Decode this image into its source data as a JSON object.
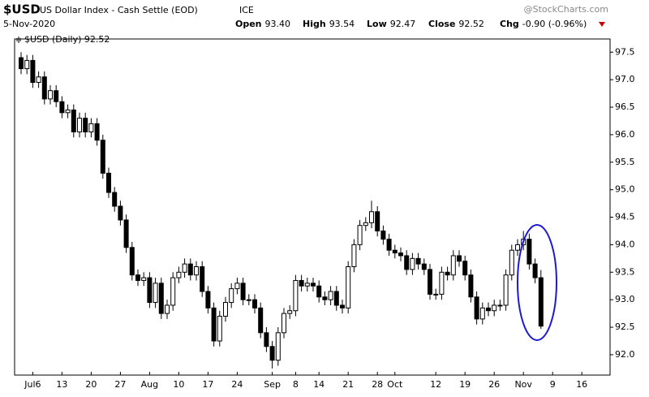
{
  "header": {
    "symbol": "$USD",
    "name": "US Dollar Index - Cash Settle (EOD)",
    "exchange": "ICE",
    "watermark": "@StockCharts.com",
    "date": "5-Nov-2020",
    "quote": [
      {
        "label": "Open",
        "value": "93.40"
      },
      {
        "label": "High",
        "value": "93.54"
      },
      {
        "label": "Low",
        "value": "92.47"
      },
      {
        "label": "Close",
        "value": "92.52"
      },
      {
        "label": "Chg",
        "value": "-0.90 (-0.96%)"
      }
    ]
  },
  "chart_data": {
    "type": "candlestick",
    "legend": "$USD (Daily) 92.52",
    "up_color": "#ffffff",
    "down_color": "#000000",
    "categories": [
      null,
      null,
      "Jul6",
      null,
      null,
      null,
      null,
      "13",
      null,
      null,
      null,
      null,
      "20",
      null,
      null,
      null,
      null,
      "27",
      null,
      null,
      null,
      null,
      "Aug",
      null,
      null,
      null,
      null,
      "10",
      null,
      null,
      null,
      null,
      "17",
      null,
      null,
      null,
      null,
      "24",
      null,
      null,
      null,
      null,
      null,
      "Sep",
      null,
      null,
      null,
      "8",
      null,
      null,
      null,
      "14",
      null,
      null,
      null,
      null,
      "21",
      null,
      null,
      null,
      null,
      "28",
      null,
      null,
      "Oct",
      null,
      null,
      null,
      null,
      null,
      null,
      "12",
      null,
      null,
      null,
      null,
      "19",
      null,
      null,
      null,
      null,
      "26",
      null,
      null,
      null,
      null,
      "Nov",
      null,
      null,
      null,
      null,
      "9",
      null,
      null,
      null,
      null,
      "16",
      null,
      null,
      null,
      null
    ],
    "open": [
      97.4,
      97.2,
      97.35,
      96.95,
      97.05,
      96.65,
      96.8,
      96.6,
      96.4,
      96.45,
      96.05,
      96.3,
      96.05,
      96.2,
      95.9,
      95.3,
      94.95,
      94.7,
      94.45,
      93.95,
      93.45,
      93.35,
      93.4,
      92.95,
      93.3,
      92.75,
      92.9,
      93.4,
      93.5,
      93.65,
      93.45,
      93.6,
      93.15,
      92.85,
      92.25,
      92.7,
      92.95,
      93.2,
      93.3,
      93.0,
      93.0,
      92.85,
      92.4,
      92.15,
      91.9,
      92.4,
      92.75,
      92.8,
      93.35,
      93.25,
      93.3,
      93.25,
      93.05,
      93.0,
      93.15,
      92.9,
      92.85,
      93.6,
      94.0,
      94.35,
      94.4,
      94.6,
      94.25,
      94.1,
      93.9,
      93.85,
      93.8,
      93.55,
      93.75,
      93.65,
      93.55,
      93.1,
      93.1,
      93.5,
      93.45,
      93.8,
      93.7,
      93.45,
      93.05,
      92.65,
      92.85,
      92.8,
      92.9,
      92.9,
      93.45,
      93.9,
      94.0,
      94.1,
      93.65,
      93.4,
      null,
      null,
      null,
      null,
      null,
      null,
      null,
      null,
      null,
      null,
      null
    ],
    "high": [
      97.5,
      97.45,
      97.45,
      97.15,
      97.15,
      96.9,
      96.9,
      96.7,
      96.55,
      96.55,
      96.4,
      96.4,
      96.3,
      96.3,
      96.0,
      95.4,
      95.05,
      94.8,
      94.55,
      94.05,
      93.55,
      93.5,
      93.5,
      93.4,
      93.4,
      93.0,
      93.5,
      93.6,
      93.75,
      93.75,
      93.7,
      93.7,
      93.25,
      92.95,
      92.8,
      93.05,
      93.3,
      93.4,
      93.4,
      93.1,
      93.1,
      92.95,
      92.5,
      92.25,
      92.5,
      92.85,
      92.9,
      93.45,
      93.45,
      93.4,
      93.4,
      93.35,
      93.15,
      93.25,
      93.25,
      93.0,
      93.7,
      94.1,
      94.45,
      94.5,
      94.8,
      94.7,
      94.35,
      94.2,
      94.0,
      93.95,
      93.9,
      93.85,
      93.85,
      93.75,
      93.65,
      93.2,
      93.6,
      93.6,
      93.9,
      93.9,
      93.8,
      93.55,
      93.15,
      92.95,
      92.95,
      93.0,
      93.0,
      93.55,
      94.0,
      94.1,
      94.25,
      94.2,
      93.75,
      93.54,
      null,
      null,
      null,
      null,
      null,
      null,
      null,
      null,
      null,
      null,
      null
    ],
    "low": [
      97.1,
      97.1,
      96.85,
      96.85,
      96.55,
      96.55,
      96.5,
      96.3,
      96.3,
      95.95,
      95.95,
      95.95,
      95.95,
      95.8,
      95.2,
      94.85,
      94.6,
      94.35,
      93.85,
      93.35,
      93.25,
      93.25,
      92.85,
      92.85,
      92.65,
      92.65,
      92.8,
      93.3,
      93.4,
      93.35,
      93.35,
      93.05,
      92.75,
      92.15,
      92.15,
      92.6,
      92.85,
      93.1,
      92.9,
      92.9,
      92.75,
      92.3,
      92.05,
      91.75,
      91.8,
      92.3,
      92.65,
      92.7,
      93.15,
      93.15,
      93.15,
      92.95,
      92.9,
      92.9,
      92.8,
      92.75,
      92.75,
      93.5,
      93.9,
      94.25,
      94.3,
      94.15,
      94.0,
      93.8,
      93.75,
      93.7,
      93.45,
      93.45,
      93.55,
      93.45,
      93.0,
      93.0,
      93.0,
      93.35,
      93.35,
      93.6,
      93.35,
      92.95,
      92.55,
      92.55,
      92.7,
      92.7,
      92.8,
      92.8,
      93.35,
      93.8,
      93.9,
      93.55,
      93.3,
      92.47,
      null,
      null,
      null,
      null,
      null,
      null,
      null,
      null,
      null,
      null,
      null
    ],
    "close": [
      97.2,
      97.35,
      96.95,
      97.05,
      96.65,
      96.8,
      96.6,
      96.4,
      96.45,
      96.05,
      96.3,
      96.05,
      96.2,
      95.9,
      95.3,
      94.95,
      94.7,
      94.45,
      93.95,
      93.45,
      93.35,
      93.4,
      92.95,
      93.3,
      92.75,
      92.9,
      93.4,
      93.5,
      93.65,
      93.45,
      93.6,
      93.15,
      92.85,
      92.25,
      92.7,
      92.95,
      93.2,
      93.3,
      93.0,
      93.0,
      92.85,
      92.4,
      92.15,
      91.9,
      92.4,
      92.75,
      92.8,
      93.35,
      93.25,
      93.3,
      93.25,
      93.05,
      93.0,
      93.15,
      92.9,
      92.85,
      93.6,
      94.0,
      94.35,
      94.4,
      94.6,
      94.25,
      94.1,
      93.9,
      93.85,
      93.8,
      93.55,
      93.75,
      93.65,
      93.55,
      93.1,
      93.1,
      93.5,
      93.45,
      93.8,
      93.7,
      93.45,
      93.05,
      92.65,
      92.85,
      92.8,
      92.9,
      92.9,
      93.45,
      93.9,
      94.0,
      94.1,
      93.65,
      93.4,
      92.52,
      null,
      null,
      null,
      null,
      null,
      null,
      null,
      null,
      null,
      null,
      null
    ],
    "ylim": [
      91.63,
      97.74
    ],
    "yticks": [
      {
        "value": 92,
        "label": "92.0"
      },
      92.5,
      {
        "value": 93,
        "label": "93.0"
      },
      93.5,
      {
        "value": 94,
        "label": "94.0"
      },
      94.5,
      {
        "value": 95,
        "label": "95.0"
      },
      95.5,
      {
        "value": 96,
        "label": "96.0"
      },
      96.5,
      {
        "value": 97,
        "label": "97.0"
      },
      97.5
    ]
  }
}
